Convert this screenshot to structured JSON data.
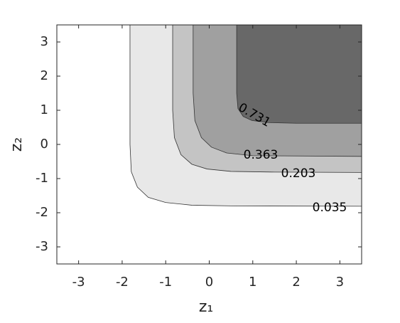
{
  "chart_data": {
    "type": "contour",
    "xlabel": "z₁",
    "ylabel": "z₂",
    "xlim": [
      -3.5,
      3.5
    ],
    "ylim": [
      -3.5,
      3.5
    ],
    "xticks": [
      -3,
      -2,
      -1,
      0,
      1,
      2,
      3
    ],
    "yticks": [
      -3,
      -2,
      -1,
      0,
      1,
      2,
      3
    ],
    "contours": [
      {
        "level": 0.035,
        "color": "#e8e8e8",
        "x": [
          -1.82,
          -1.82,
          -1.79,
          -1.65,
          -1.4,
          -1.0,
          -0.4,
          0.5,
          3.5
        ],
        "y": [
          3.5,
          0,
          -0.8,
          -1.25,
          -1.55,
          -1.7,
          -1.78,
          -1.8,
          -1.81
        ]
      },
      {
        "level": 0.203,
        "color": "#c4c4c4",
        "x": [
          -0.84,
          -0.84,
          -0.8,
          -0.65,
          -0.4,
          -0.05,
          0.5,
          1.5,
          3.5
        ],
        "y": [
          3.5,
          1.0,
          0.2,
          -0.3,
          -0.58,
          -0.72,
          -0.79,
          -0.81,
          -0.82
        ]
      },
      {
        "level": 0.363,
        "color": "#a0a0a0",
        "x": [
          -0.37,
          -0.37,
          -0.33,
          -0.18,
          0.05,
          0.4,
          1.0,
          3.5
        ],
        "y": [
          3.5,
          1.5,
          0.7,
          0.2,
          -0.08,
          -0.25,
          -0.33,
          -0.35
        ]
      },
      {
        "level": 0.731,
        "color": "#686868",
        "x": [
          0.63,
          0.63,
          0.66,
          0.78,
          0.98,
          1.35,
          2.0,
          3.5
        ],
        "y": [
          3.5,
          1.5,
          1.05,
          0.82,
          0.7,
          0.64,
          0.62,
          0.62
        ]
      }
    ]
  }
}
